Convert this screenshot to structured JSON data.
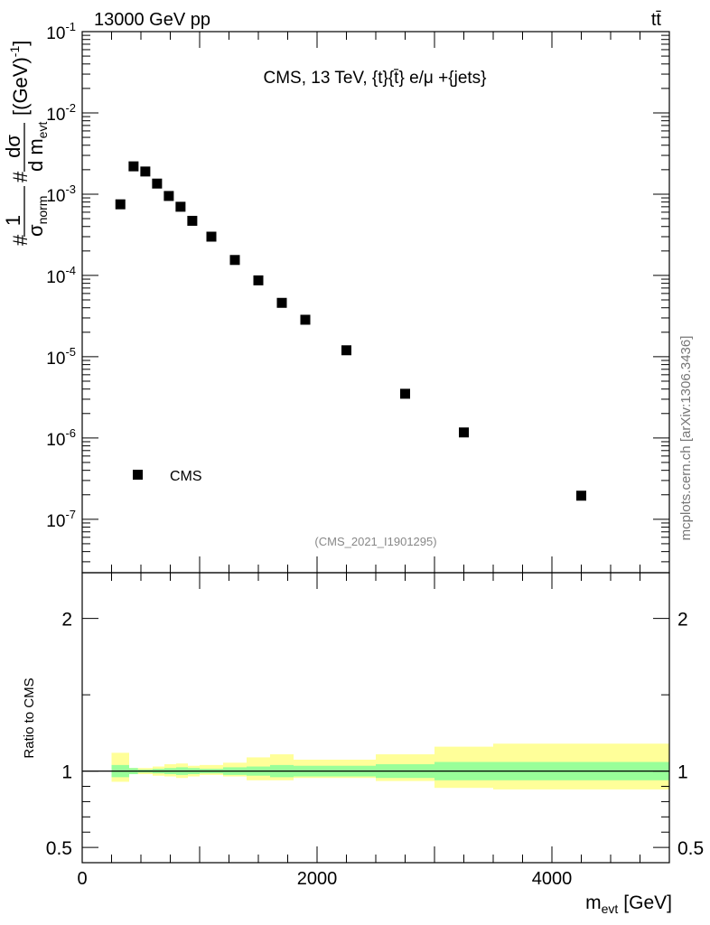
{
  "header": {
    "left": "13000 GeV pp",
    "right": "tt̄",
    "side_label": "mcplots.cern.ch [arXiv:1306.3436]"
  },
  "chart_data": [
    {
      "type": "scatter",
      "yscale": "log",
      "title": "CMS, 13 TeV, {t}{t̄} e/μ +{jets}",
      "ylabel": "#1/σnorm #dσ/d mevt [(GeV)^-1]",
      "ylabel_parts": {
        "prefix1": "#",
        "one": "1",
        "sigma": "σ",
        "sigma_sub": "norm",
        "prefix2": "#",
        "dsigma": "dσ",
        "dm": "d m",
        "dm_sub": "evt",
        "unit": "[(GeV)",
        "unit_sup": "-1",
        "unit_close": "]"
      },
      "xlim": [
        0,
        5000
      ],
      "ylim": [
        2.2e-08,
        0.1
      ],
      "y_tick_labels": [
        {
          "value": 1e-07,
          "base": "10",
          "exp": "-7"
        },
        {
          "value": 1e-06,
          "base": "10",
          "exp": "-6"
        },
        {
          "value": 1e-05,
          "base": "10",
          "exp": "-5"
        },
        {
          "value": 0.0001,
          "base": "10",
          "exp": "-4"
        },
        {
          "value": 0.001,
          "base": "10",
          "exp": "-3"
        },
        {
          "value": 0.01,
          "base": "10",
          "exp": "-2"
        },
        {
          "value": 0.1,
          "base": "10",
          "exp": "-1"
        }
      ],
      "series": [
        {
          "name": "CMS",
          "marker": "square",
          "color": "#000000",
          "x": [
            325,
            437.5,
            537.5,
            637.5,
            737.5,
            837.5,
            937.5,
            1100,
            1300,
            1500,
            1700,
            1900,
            2250,
            2750,
            3250,
            4250
          ],
          "values": [
            0.00075,
            0.0022,
            0.0019,
            0.00135,
            0.00095,
            0.0007,
            0.00047,
            0.0003,
            0.000155,
            8.7e-05,
            4.6e-05,
            2.85e-05,
            1.2e-05,
            3.5e-06,
            1.17e-06,
            1.95e-07
          ]
        }
      ],
      "legend": {
        "label": "CMS",
        "position": "bottom-left"
      },
      "annotation": "(CMS_2021_I1901295)"
    },
    {
      "type": "area",
      "ylabel": "Ratio to CMS",
      "xlabel_main": "m",
      "xlabel_sub": "evt",
      "xlabel_unit": "[GeV]",
      "xlim": [
        0,
        5000
      ],
      "ylim": [
        0.4,
        2.3
      ],
      "x_ticks": [
        0,
        2000,
        4000
      ],
      "x_tick_labels": [
        "0",
        "2000",
        "4000"
      ],
      "y_tick_labels": [
        {
          "value": 0.5,
          "label": "0.5"
        },
        {
          "value": 1,
          "label": "1"
        },
        {
          "value": 2,
          "label": "2"
        }
      ],
      "reference_line": 1,
      "bins": [
        250,
        400,
        475,
        600,
        700,
        800,
        900,
        1000,
        1200,
        1400,
        1600,
        1800,
        2000,
        2500,
        3000,
        3500,
        5000
      ],
      "bands": {
        "inner_color": "#99ff99",
        "outer_color": "#ffff99",
        "inner_lo": [
          0.96,
          0.98,
          0.99,
          0.985,
          0.98,
          0.975,
          0.98,
          0.985,
          0.975,
          0.97,
          0.96,
          0.965,
          0.965,
          0.955,
          0.94,
          0.94
        ],
        "inner_hi": [
          1.04,
          1.02,
          1.01,
          1.015,
          1.02,
          1.025,
          1.02,
          1.015,
          1.025,
          1.03,
          1.04,
          1.035,
          1.035,
          1.045,
          1.06,
          1.06
        ],
        "outer_lo": [
          0.93,
          0.985,
          0.98,
          0.97,
          0.965,
          0.955,
          0.965,
          0.975,
          0.965,
          0.94,
          0.94,
          0.955,
          0.955,
          0.935,
          0.89,
          0.88
        ],
        "outer_hi": [
          1.12,
          1.02,
          1.02,
          1.03,
          1.045,
          1.05,
          1.035,
          1.04,
          1.055,
          1.09,
          1.11,
          1.075,
          1.075,
          1.11,
          1.16,
          1.18
        ]
      }
    }
  ]
}
